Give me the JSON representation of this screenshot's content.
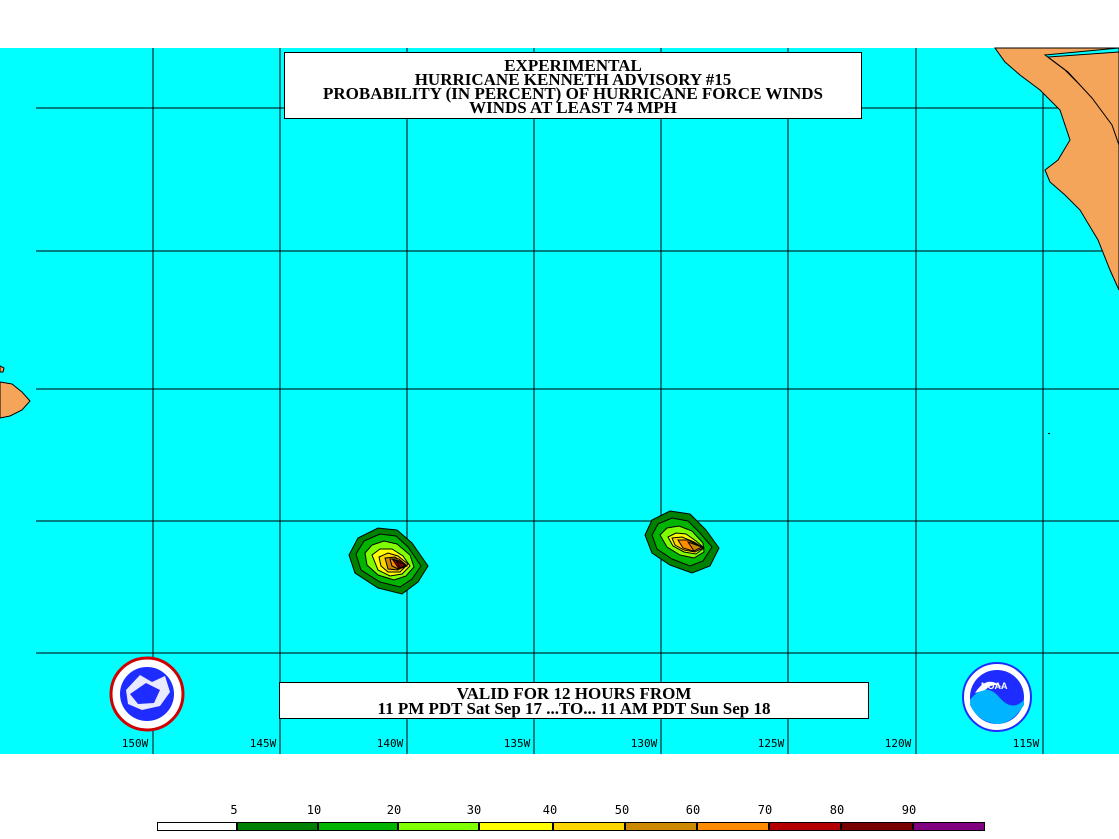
{
  "title": {
    "lines": [
      "EXPERIMENTAL",
      "HURRICANE KENNETH ADVISORY #15",
      "PROBABILITY (IN PERCENT) OF HURRICANE FORCE WINDS",
      "WINDS AT LEAST 74 MPH"
    ]
  },
  "valid": {
    "line1": "VALID FOR 12 HOURS FROM",
    "line2": "11 PM PDT Sat Sep 17 ...TO... 11 AM PDT Sun Sep 18"
  },
  "map": {
    "ocean_color": "#00ffff",
    "land_color": "#f5a55a",
    "longitude_labels": [
      "150W",
      "145W",
      "140W",
      "135W",
      "130W",
      "125W",
      "120W",
      "115W"
    ]
  },
  "logos": {
    "left": "national-weather-service-logo",
    "right": "noaa-logo",
    "right_text": "NOAA"
  },
  "legend": {
    "tick_labels": [
      "5",
      "10",
      "20",
      "30",
      "40",
      "50",
      "60",
      "70",
      "80",
      "90"
    ],
    "colors": [
      "#ffffff",
      "#008000",
      "#00b400",
      "#7fff00",
      "#ffff00",
      "#ffd700",
      "#cc8800",
      "#ff8c00",
      "#b40000",
      "#780000",
      "#800080"
    ]
  }
}
